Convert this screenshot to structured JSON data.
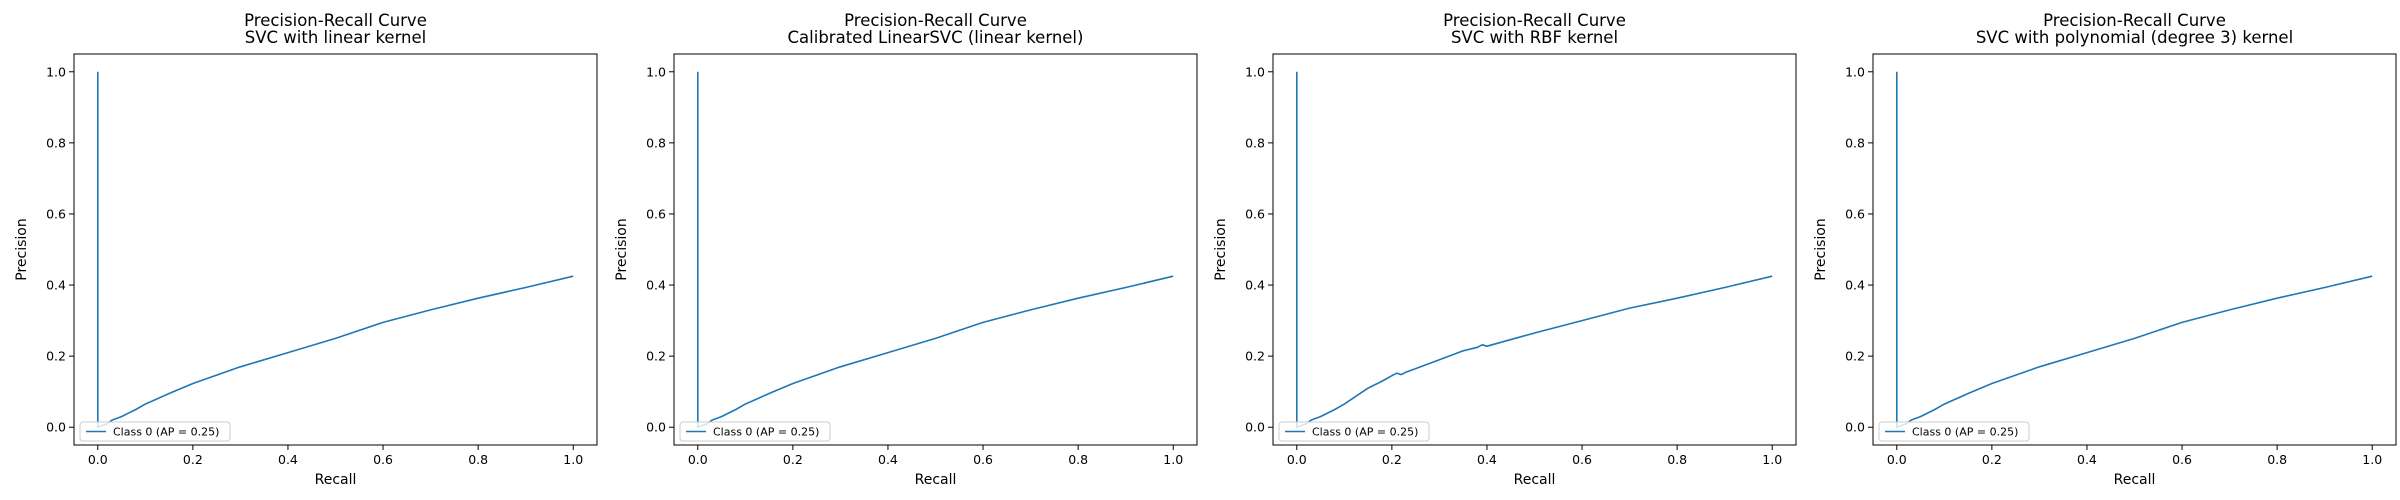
{
  "chart_data": [
    {
      "type": "line",
      "title": "Precision-Recall Curve",
      "subtitle": "SVC with linear kernel",
      "xlabel": "Recall",
      "ylabel": "Precision",
      "xlim": [
        -0.05,
        1.05
      ],
      "ylim": [
        -0.05,
        1.05
      ],
      "xticks": [
        "0.0",
        "0.2",
        "0.4",
        "0.6",
        "0.8",
        "1.0"
      ],
      "yticks": [
        "0.0",
        "0.2",
        "0.4",
        "0.6",
        "0.8",
        "1.0"
      ],
      "grid": false,
      "legend_position": "lower-left",
      "series": [
        {
          "name": "Class 0 (AP = 0.25)",
          "color": "#1f77b4",
          "x": [
            0.0,
            0.0,
            0.0,
            0.0,
            0.01,
            0.02,
            0.03,
            0.05,
            0.08,
            0.1,
            0.15,
            0.2,
            0.3,
            0.4,
            0.5,
            0.6,
            0.7,
            0.8,
            0.9,
            1.0
          ],
          "y": [
            1.0,
            0.0,
            0.03,
            0.0,
            0.005,
            0.01,
            0.02,
            0.03,
            0.05,
            0.065,
            0.095,
            0.123,
            0.17,
            0.21,
            0.25,
            0.295,
            0.33,
            0.363,
            0.393,
            0.425
          ]
        }
      ]
    },
    {
      "type": "line",
      "title": "Precision-Recall Curve",
      "subtitle": "Calibrated LinearSVC (linear kernel)",
      "xlabel": "Recall",
      "ylabel": "Precision",
      "xlim": [
        -0.05,
        1.05
      ],
      "ylim": [
        -0.05,
        1.05
      ],
      "xticks": [
        "0.0",
        "0.2",
        "0.4",
        "0.6",
        "0.8",
        "1.0"
      ],
      "yticks": [
        "0.0",
        "0.2",
        "0.4",
        "0.6",
        "0.8",
        "1.0"
      ],
      "grid": false,
      "legend_position": "lower-left",
      "series": [
        {
          "name": "Class 0 (AP = 0.25)",
          "color": "#1f77b4",
          "x": [
            0.0,
            0.0,
            0.0,
            0.0,
            0.01,
            0.02,
            0.03,
            0.05,
            0.08,
            0.1,
            0.15,
            0.2,
            0.3,
            0.4,
            0.5,
            0.6,
            0.7,
            0.8,
            0.9,
            1.0
          ],
          "y": [
            1.0,
            0.0,
            0.03,
            0.0,
            0.005,
            0.01,
            0.02,
            0.03,
            0.05,
            0.065,
            0.095,
            0.123,
            0.17,
            0.21,
            0.25,
            0.295,
            0.33,
            0.363,
            0.393,
            0.425
          ]
        }
      ]
    },
    {
      "type": "line",
      "title": "Precision-Recall Curve",
      "subtitle": "SVC with RBF kernel",
      "xlabel": "Recall",
      "ylabel": "Precision",
      "xlim": [
        -0.05,
        1.05
      ],
      "ylim": [
        -0.05,
        1.05
      ],
      "xticks": [
        "0.0",
        "0.2",
        "0.4",
        "0.6",
        "0.8",
        "1.0"
      ],
      "yticks": [
        "0.0",
        "0.2",
        "0.4",
        "0.6",
        "0.8",
        "1.0"
      ],
      "grid": false,
      "legend_position": "lower-left",
      "series": [
        {
          "name": "Class 0 (AP = 0.25)",
          "color": "#1f77b4",
          "x": [
            0.0,
            0.0,
            0.0,
            0.0,
            0.01,
            0.02,
            0.03,
            0.05,
            0.08,
            0.1,
            0.15,
            0.18,
            0.2,
            0.21,
            0.22,
            0.23,
            0.25,
            0.3,
            0.35,
            0.38,
            0.39,
            0.4,
            0.5,
            0.6,
            0.7,
            0.8,
            0.9,
            1.0
          ],
          "y": [
            1.0,
            0.0,
            0.03,
            0.0,
            0.005,
            0.01,
            0.02,
            0.03,
            0.05,
            0.065,
            0.11,
            0.13,
            0.145,
            0.152,
            0.148,
            0.155,
            0.165,
            0.19,
            0.215,
            0.225,
            0.232,
            0.228,
            0.265,
            0.3,
            0.335,
            0.363,
            0.393,
            0.425
          ]
        }
      ]
    },
    {
      "type": "line",
      "title": "Precision-Recall Curve",
      "subtitle": "SVC with polynomial (degree 3) kernel",
      "xlabel": "Recall",
      "ylabel": "Precision",
      "xlim": [
        -0.05,
        1.05
      ],
      "ylim": [
        -0.05,
        1.05
      ],
      "xticks": [
        "0.0",
        "0.2",
        "0.4",
        "0.6",
        "0.8",
        "1.0"
      ],
      "yticks": [
        "0.0",
        "0.2",
        "0.4",
        "0.6",
        "0.8",
        "1.0"
      ],
      "grid": false,
      "legend_position": "lower-left",
      "series": [
        {
          "name": "Class 0 (AP = 0.25)",
          "color": "#1f77b4",
          "x": [
            0.0,
            0.0,
            0.0,
            0.0,
            0.01,
            0.02,
            0.03,
            0.05,
            0.08,
            0.1,
            0.15,
            0.2,
            0.3,
            0.4,
            0.5,
            0.6,
            0.7,
            0.8,
            0.9,
            1.0
          ],
          "y": [
            1.0,
            0.0,
            0.03,
            0.0,
            0.005,
            0.01,
            0.02,
            0.03,
            0.05,
            0.065,
            0.095,
            0.123,
            0.17,
            0.21,
            0.25,
            0.295,
            0.33,
            0.363,
            0.393,
            0.425
          ]
        }
      ]
    }
  ]
}
